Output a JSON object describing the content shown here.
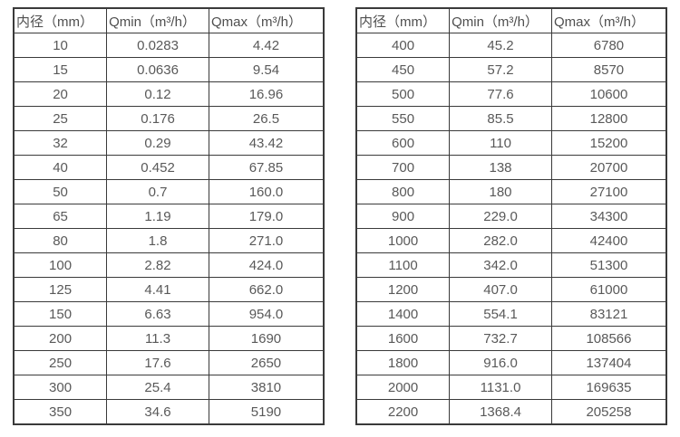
{
  "chart_data": [
    {
      "type": "table",
      "name": "flow-rate-table-small-diameters",
      "headers": [
        "内径（mm）",
        "Qmin（m³/h）",
        "Qmax（m³/h）"
      ],
      "columns": [
        "inner_diameter_mm",
        "qmin_m3_per_h",
        "qmax_m3_per_h"
      ],
      "rows": [
        [
          "10",
          "0.0283",
          "4.42"
        ],
        [
          "15",
          "0.0636",
          "9.54"
        ],
        [
          "20",
          "0.12",
          "16.96"
        ],
        [
          "25",
          "0.176",
          "26.5"
        ],
        [
          "32",
          "0.29",
          "43.42"
        ],
        [
          "40",
          "0.452",
          "67.85"
        ],
        [
          "50",
          "0.7",
          "160.0"
        ],
        [
          "65",
          "1.19",
          "179.0"
        ],
        [
          "80",
          "1.8",
          "271.0"
        ],
        [
          "100",
          "2.82",
          "424.0"
        ],
        [
          "125",
          "4.41",
          "662.0"
        ],
        [
          "150",
          "6.63",
          "954.0"
        ],
        [
          "200",
          "11.3",
          "1690"
        ],
        [
          "250",
          "17.6",
          "2650"
        ],
        [
          "300",
          "25.4",
          "3810"
        ],
        [
          "350",
          "34.6",
          "5190"
        ]
      ]
    },
    {
      "type": "table",
      "name": "flow-rate-table-large-diameters",
      "headers": [
        "内径（mm）",
        "Qmin（m³/h）",
        "Qmax（m³/h）"
      ],
      "columns": [
        "inner_diameter_mm",
        "qmin_m3_per_h",
        "qmax_m3_per_h"
      ],
      "rows": [
        [
          "400",
          "45.2",
          "6780"
        ],
        [
          "450",
          "57.2",
          "8570"
        ],
        [
          "500",
          "77.6",
          "10600"
        ],
        [
          "550",
          "85.5",
          "12800"
        ],
        [
          "600",
          "110",
          "15200"
        ],
        [
          "700",
          "138",
          "20700"
        ],
        [
          "800",
          "180",
          "27100"
        ],
        [
          "900",
          "229.0",
          "34300"
        ],
        [
          "1000",
          "282.0",
          "42400"
        ],
        [
          "1100",
          "342.0",
          "51300"
        ],
        [
          "1200",
          "407.0",
          "61000"
        ],
        [
          "1400",
          "554.1",
          "83121"
        ],
        [
          "1600",
          "732.7",
          "108566"
        ],
        [
          "1800",
          "916.0",
          "137404"
        ],
        [
          "2000",
          "1131.0",
          "169635"
        ],
        [
          "2200",
          "1368.4",
          "205258"
        ]
      ]
    }
  ],
  "colors": {
    "border": "#3a3a3a",
    "text": "#595959",
    "background": "#ffffff"
  }
}
